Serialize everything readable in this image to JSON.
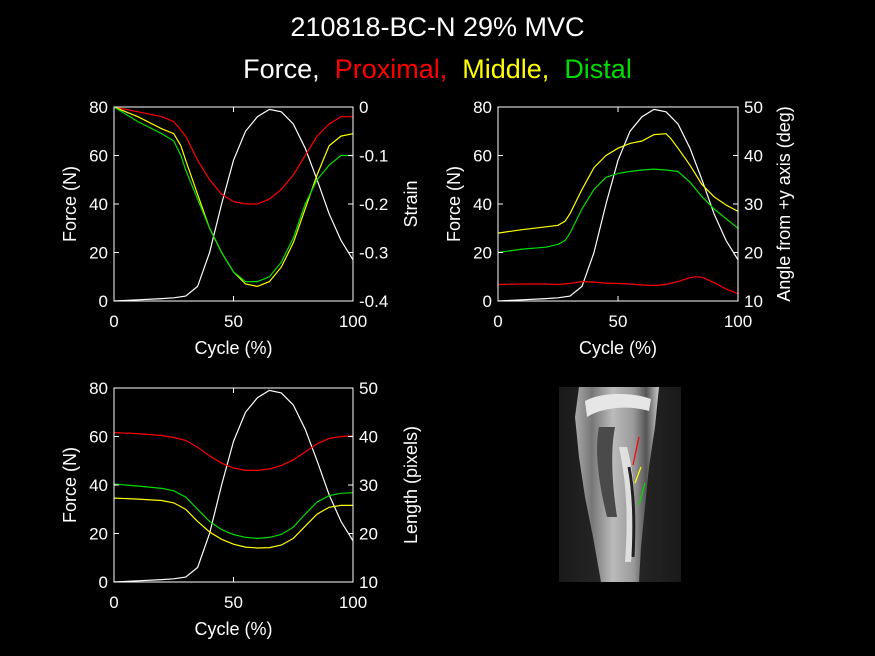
{
  "title": "210818-BC-N 29% MVC",
  "subtitle": [
    {
      "text": "Force,",
      "color": "#ffffff"
    },
    {
      "text": "Proximal,",
      "color": "#ff0000"
    },
    {
      "text": "Middle,",
      "color": "#ffff00"
    },
    {
      "text": "Distal",
      "color": "#00dd00"
    }
  ],
  "chart_data": [
    {
      "type": "line",
      "panel": "top-left",
      "xlabel": "Cycle (%)",
      "ylabel_left": "Force (N)",
      "ylabel_right": "Strain",
      "xlim": [
        0,
        100
      ],
      "ylim_left": [
        0,
        80
      ],
      "ylim_right": [
        -0.4,
        0
      ],
      "xticks": [
        0,
        50,
        100
      ],
      "yticks_left": [
        0,
        20,
        40,
        60,
        80
      ],
      "yticks_right": [
        -0.4,
        -0.3,
        -0.2,
        -0.1,
        0
      ],
      "ytick_labels_right": [
        "-0.4",
        "-0.3",
        "-0.2",
        "-0.1",
        "0"
      ],
      "series": [
        {
          "color": "#ffffff",
          "axis": "left",
          "x": [
            0,
            10,
            20,
            25,
            30,
            35,
            40,
            45,
            50,
            55,
            60,
            65,
            70,
            75,
            80,
            85,
            90,
            95,
            100
          ],
          "y": [
            0,
            0.5,
            1.0,
            1.3,
            2,
            6,
            20,
            40,
            58,
            70,
            76,
            79,
            78,
            73,
            63,
            50,
            36,
            25,
            17
          ]
        },
        {
          "color": "#ff0000",
          "axis": "right",
          "x": [
            0,
            10,
            20,
            25,
            30,
            35,
            40,
            45,
            50,
            55,
            60,
            65,
            70,
            75,
            80,
            85,
            90,
            95,
            100
          ],
          "y": [
            0,
            -0.01,
            -0.02,
            -0.03,
            -0.06,
            -0.11,
            -0.15,
            -0.18,
            -0.195,
            -0.2,
            -0.2,
            -0.19,
            -0.17,
            -0.14,
            -0.1,
            -0.06,
            -0.035,
            -0.02,
            -0.02
          ]
        },
        {
          "color": "#ffff00",
          "axis": "right",
          "x": [
            0,
            10,
            20,
            25,
            28,
            30,
            35,
            40,
            45,
            50,
            55,
            60,
            65,
            70,
            75,
            80,
            85,
            90,
            95,
            100
          ],
          "y": [
            0,
            -0.02,
            -0.045,
            -0.055,
            -0.08,
            -0.11,
            -0.18,
            -0.25,
            -0.3,
            -0.34,
            -0.365,
            -0.37,
            -0.36,
            -0.33,
            -0.28,
            -0.21,
            -0.14,
            -0.08,
            -0.06,
            -0.055
          ]
        },
        {
          "color": "#00dd00",
          "axis": "right",
          "x": [
            0,
            10,
            20,
            25,
            28,
            30,
            35,
            40,
            45,
            50,
            55,
            60,
            65,
            70,
            75,
            80,
            85,
            90,
            95,
            100
          ],
          "y": [
            0,
            -0.03,
            -0.055,
            -0.07,
            -0.1,
            -0.13,
            -0.19,
            -0.25,
            -0.3,
            -0.34,
            -0.36,
            -0.36,
            -0.35,
            -0.32,
            -0.27,
            -0.2,
            -0.15,
            -0.12,
            -0.1,
            -0.1
          ]
        }
      ]
    },
    {
      "type": "line",
      "panel": "top-right",
      "xlabel": "Cycle (%)",
      "ylabel_left": "Force (N)",
      "ylabel_right": "Angle from +y axis (deg)",
      "xlim": [
        0,
        100
      ],
      "ylim_left": [
        0,
        80
      ],
      "ylim_right": [
        10,
        50
      ],
      "xticks": [
        0,
        50,
        100
      ],
      "yticks_left": [
        0,
        20,
        40,
        60,
        80
      ],
      "yticks_right": [
        10,
        20,
        30,
        40,
        50
      ],
      "ytick_labels_right": [
        "10",
        "20",
        "30",
        "40",
        "50"
      ],
      "series": [
        {
          "color": "#ffffff",
          "axis": "left",
          "x": [
            0,
            10,
            20,
            25,
            30,
            35,
            40,
            45,
            50,
            55,
            60,
            65,
            70,
            75,
            80,
            85,
            90,
            95,
            100
          ],
          "y": [
            0,
            0.5,
            1.0,
            1.3,
            2,
            6,
            20,
            40,
            58,
            70,
            76,
            79,
            78,
            73,
            63,
            50,
            36,
            25,
            17
          ]
        },
        {
          "color": "#ff0000",
          "axis": "right",
          "x": [
            0,
            10,
            20,
            25,
            30,
            35,
            40,
            45,
            50,
            55,
            60,
            65,
            70,
            75,
            80,
            82,
            85,
            90,
            95,
            100
          ],
          "y": [
            13.4,
            13.5,
            13.5,
            13.4,
            13.6,
            14.0,
            13.9,
            13.7,
            13.6,
            13.5,
            13.3,
            13.2,
            13.4,
            14.0,
            14.8,
            15.0,
            14.9,
            13.8,
            12.5,
            11.5
          ]
        },
        {
          "color": "#ffff00",
          "axis": "right",
          "x": [
            0,
            10,
            20,
            25,
            28,
            30,
            35,
            40,
            45,
            50,
            55,
            60,
            65,
            70,
            72,
            75,
            80,
            85,
            90,
            95,
            100
          ],
          "y": [
            24.0,
            24.7,
            25.3,
            25.6,
            26.5,
            28.0,
            33.0,
            37.5,
            40.0,
            41.5,
            42.5,
            43.0,
            44.3,
            44.5,
            43.5,
            41.5,
            38.0,
            34.0,
            31.5,
            29.8,
            28.5
          ]
        },
        {
          "color": "#00dd00",
          "axis": "right",
          "x": [
            0,
            10,
            20,
            25,
            28,
            30,
            35,
            40,
            45,
            50,
            55,
            60,
            65,
            70,
            75,
            80,
            85,
            90,
            95,
            100
          ],
          "y": [
            20.0,
            20.7,
            21.1,
            21.7,
            22.5,
            24.0,
            29.0,
            33.0,
            35.5,
            36.3,
            36.7,
            37.0,
            37.2,
            37.0,
            36.7,
            34.5,
            31.5,
            29.0,
            27.0,
            25.0
          ]
        }
      ]
    },
    {
      "type": "line",
      "panel": "bottom-left",
      "xlabel": "Cycle (%)",
      "ylabel_left": "Force (N)",
      "ylabel_right": "Length (pixels)",
      "xlim": [
        0,
        100
      ],
      "ylim_left": [
        0,
        80
      ],
      "ylim_right": [
        10,
        50
      ],
      "xticks": [
        0,
        50,
        100
      ],
      "yticks_left": [
        0,
        20,
        40,
        60,
        80
      ],
      "yticks_right": [
        10,
        20,
        30,
        40,
        50
      ],
      "ytick_labels_right": [
        "10",
        "20",
        "30",
        "40",
        "50"
      ],
      "series": [
        {
          "color": "#ffffff",
          "axis": "left",
          "x": [
            0,
            10,
            20,
            25,
            30,
            35,
            40,
            45,
            50,
            55,
            60,
            65,
            70,
            75,
            80,
            85,
            90,
            95,
            100
          ],
          "y": [
            0,
            0.5,
            1.0,
            1.3,
            2,
            6,
            20,
            40,
            58,
            70,
            76,
            79,
            78,
            73,
            63,
            50,
            36,
            25,
            17
          ]
        },
        {
          "color": "#ff0000",
          "axis": "right",
          "x": [
            0,
            10,
            20,
            25,
            30,
            35,
            40,
            45,
            50,
            55,
            60,
            65,
            70,
            75,
            80,
            85,
            90,
            95,
            100
          ],
          "y": [
            40.8,
            40.6,
            40.2,
            39.8,
            39.2,
            37.8,
            36.0,
            34.5,
            33.5,
            33.0,
            33.0,
            33.3,
            34.0,
            35.2,
            36.8,
            38.5,
            39.6,
            40.0,
            40.1
          ]
        },
        {
          "color": "#ffff00",
          "axis": "right",
          "x": [
            0,
            10,
            20,
            25,
            30,
            35,
            40,
            45,
            50,
            55,
            60,
            65,
            70,
            75,
            80,
            85,
            90,
            95,
            100
          ],
          "y": [
            27.3,
            27.1,
            26.8,
            26.3,
            25.0,
            22.5,
            20.3,
            18.8,
            17.8,
            17.2,
            17.0,
            17.1,
            17.6,
            19.0,
            21.5,
            24.0,
            25.4,
            25.8,
            25.8
          ]
        },
        {
          "color": "#00dd00",
          "axis": "right",
          "x": [
            0,
            10,
            20,
            25,
            30,
            35,
            40,
            45,
            50,
            55,
            60,
            65,
            70,
            75,
            80,
            85,
            90,
            95,
            100
          ],
          "y": [
            30.2,
            29.8,
            29.3,
            28.8,
            27.5,
            25.0,
            22.5,
            20.8,
            19.8,
            19.2,
            19.0,
            19.2,
            19.8,
            21.3,
            24.0,
            26.5,
            27.8,
            28.3,
            28.4
          ]
        }
      ]
    }
  ],
  "image": {
    "description_name": "mri-leg-image",
    "overlay_lines": [
      {
        "color": "#ff0000"
      },
      {
        "color": "#ffff00"
      },
      {
        "color": "#00dd00"
      }
    ]
  }
}
